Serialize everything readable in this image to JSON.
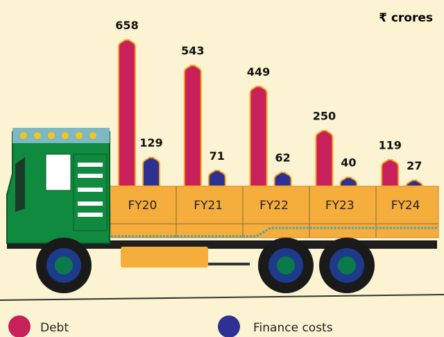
{
  "chart_data": {
    "type": "bar",
    "unit_label": "₹ crores",
    "categories": [
      "FY20",
      "FY21",
      "FY22",
      "FY23",
      "FY24"
    ],
    "series": [
      {
        "name": "Debt",
        "color": "#c8205a",
        "values": [
          658,
          543,
          449,
          250,
          119
        ]
      },
      {
        "name": "Finance costs",
        "color": "#2e3192",
        "values": [
          129,
          71,
          62,
          40,
          27
        ]
      }
    ]
  }
}
